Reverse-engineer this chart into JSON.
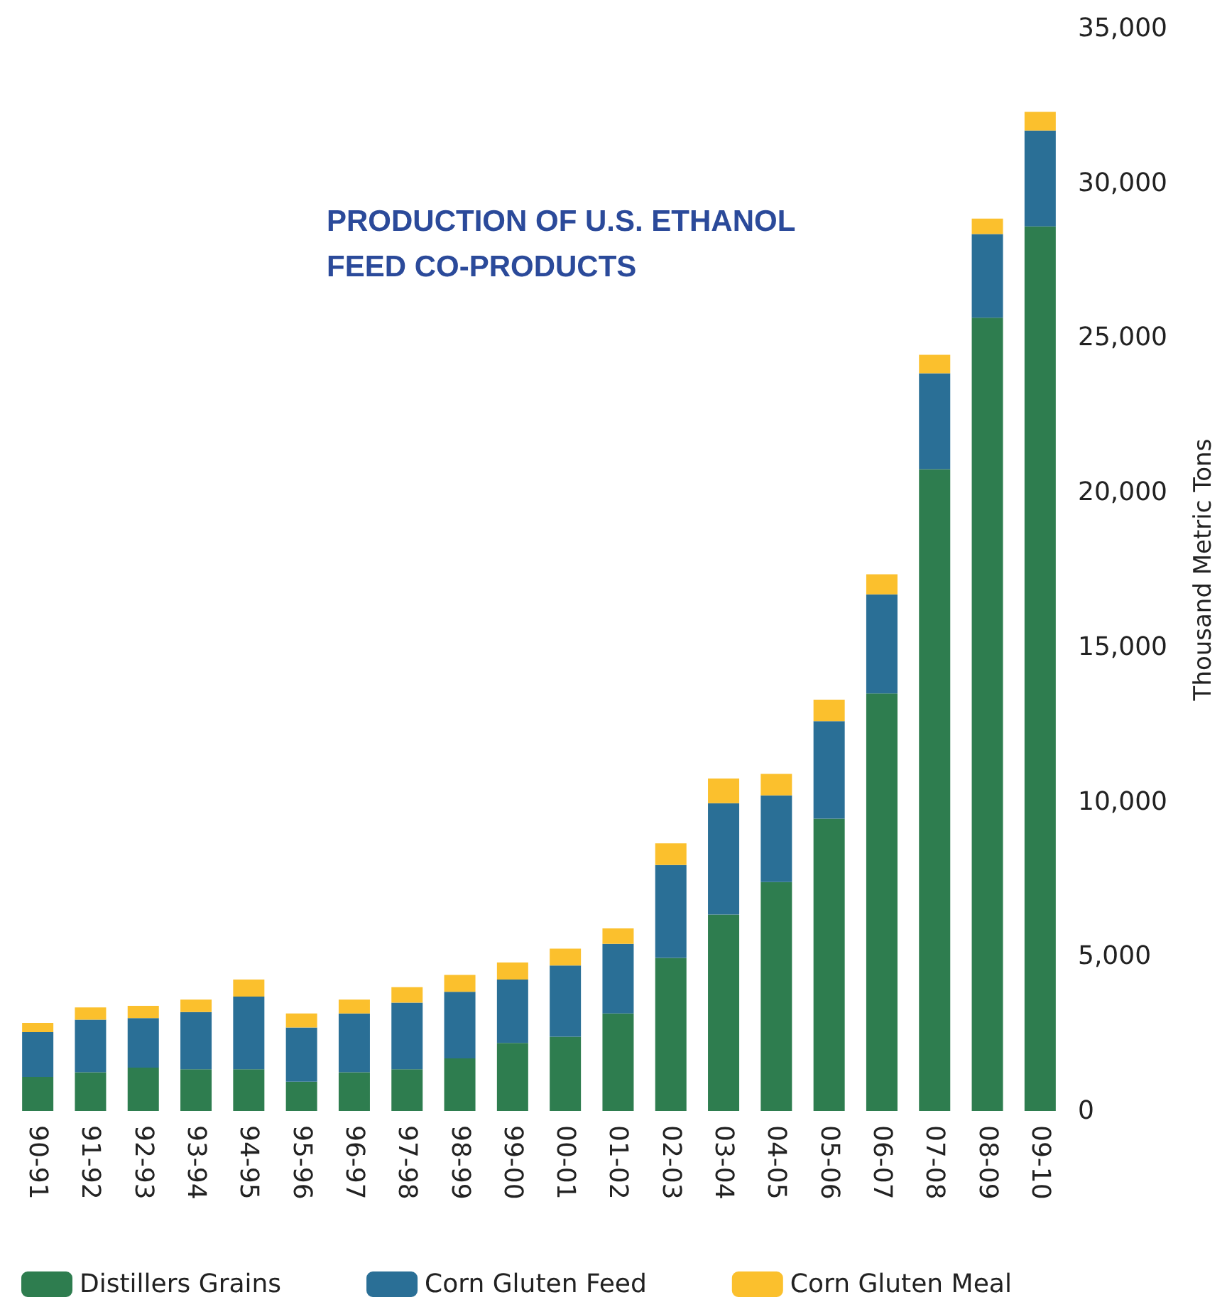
{
  "chart_data": {
    "type": "bar",
    "title": "PRODUCTION OF U.S. ETHANOL\nFEED CO-PRODUCTS",
    "ylabel": "Thousand Metric Tons",
    "stacked": true,
    "legend": "bottom",
    "grid": false,
    "categories": [
      "90-91",
      "91-92",
      "92-93",
      "93-94",
      "94-95",
      "95-96",
      "96-97",
      "97-98",
      "98-99",
      "99-00",
      "00-01",
      "01-02",
      "02-03",
      "03-04",
      "04-05",
      "05-06",
      "06-07",
      "07-08",
      "08-09",
      "09-10"
    ],
    "series": [
      {
        "name": "Distillers Grains",
        "color": "#2e7d4f",
        "values": [
          1100,
          1250,
          1400,
          1350,
          1350,
          950,
          1250,
          1350,
          1700,
          2200,
          2400,
          3150,
          4950,
          6350,
          7400,
          9450,
          13500,
          20750,
          25650,
          28600
        ]
      },
      {
        "name": "Corn Gluten Feed",
        "color": "#2a6f96",
        "values": [
          1450,
          1700,
          1600,
          1850,
          2350,
          1750,
          1900,
          2150,
          2150,
          2050,
          2300,
          2250,
          3000,
          3600,
          2800,
          3150,
          3200,
          3100,
          2700,
          3100
        ]
      },
      {
        "name": "Corn Gluten Meal",
        "color": "#fbc02d",
        "values": [
          300,
          400,
          400,
          400,
          550,
          450,
          450,
          500,
          550,
          550,
          550,
          500,
          700,
          800,
          700,
          700,
          650,
          600,
          500,
          600
        ]
      }
    ],
    "ylim": [
      0,
      35000
    ],
    "yticks": [
      0,
      {
        "value": 5000,
        "label": "5,000"
      },
      {
        "value": 10000,
        "label": "10,000"
      },
      {
        "value": 15000,
        "label": "15,000"
      },
      {
        "value": 20000,
        "label": "20,000"
      },
      {
        "value": 25000,
        "label": "25,000"
      },
      {
        "value": 30000,
        "label": "30,000"
      },
      {
        "value": 35000,
        "label": "35,000"
      }
    ]
  }
}
